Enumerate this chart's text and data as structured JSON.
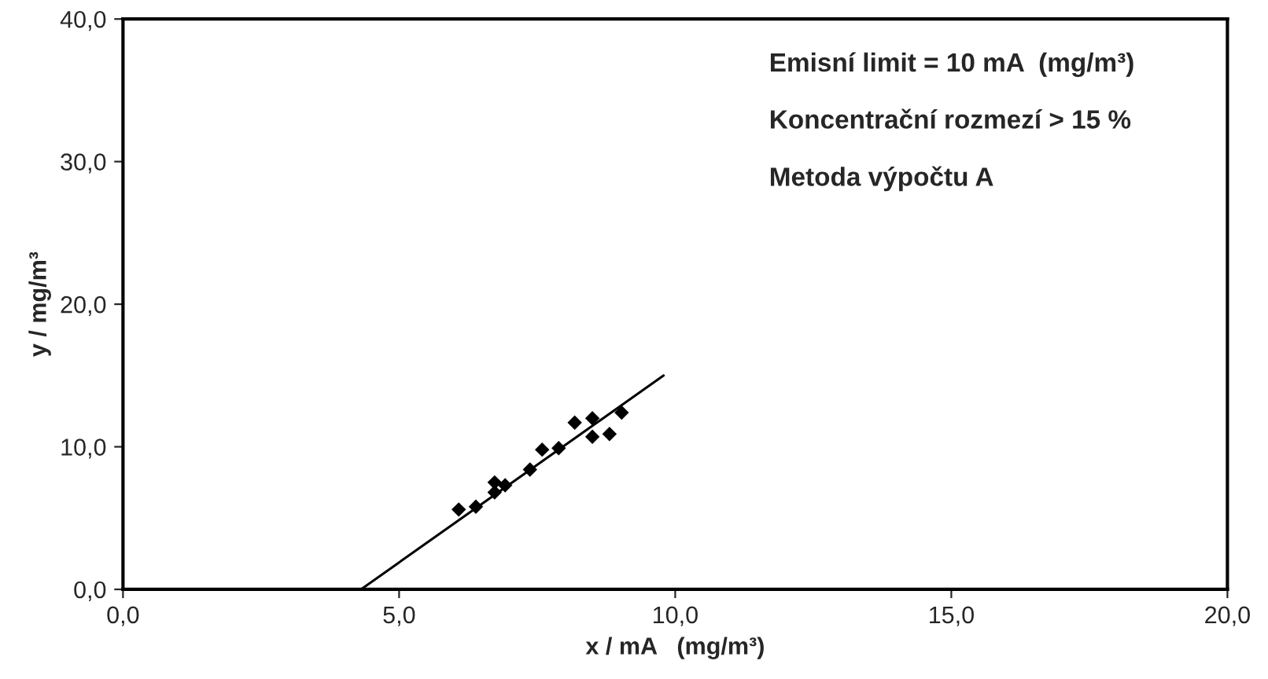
{
  "chart_data": {
    "type": "scatter",
    "xlabel": "x / mA   (mg/m³)",
    "ylabel": "y / mg/m³",
    "annotations": [
      "Emisní limit = 10 mA  (mg/m³)",
      "Koncentrační rozmezí > 15 %",
      "Metoda výpočtu A"
    ],
    "series": [
      {
        "color": "#000000",
        "marker": "diamond",
        "x": [
          6.08,
          6.39,
          6.73,
          6.73,
          6.92,
          7.37,
          7.59,
          7.89,
          8.18,
          8.5,
          8.5,
          8.81,
          9.03
        ],
        "values": [
          5.6,
          5.8,
          7.5,
          6.8,
          7.3,
          8.4,
          9.8,
          9.9,
          11.7,
          12.0,
          10.7,
          10.9,
          12.4
        ]
      },
      {
        "type": "line",
        "color": "#000000",
        "marker": "none",
        "x": [
          4.31,
          9.79
        ],
        "values": [
          0,
          15.0
        ]
      }
    ],
    "xlim": [
      0,
      20
    ],
    "ylim": [
      0,
      40
    ],
    "xticks": [
      {
        "value": 0,
        "label": "0,0"
      },
      {
        "value": 5,
        "label": "5,0"
      },
      {
        "value": 10,
        "label": "10,0"
      },
      {
        "value": 15,
        "label": "15,0"
      },
      {
        "value": 20,
        "label": "20,0"
      }
    ],
    "yticks": [
      {
        "value": 0,
        "label": "0,0"
      },
      {
        "value": 10,
        "label": "10,0"
      },
      {
        "value": 20,
        "label": "20,0"
      },
      {
        "value": 30,
        "label": "30,0"
      },
      {
        "value": 40,
        "label": "40,0"
      }
    ],
    "grid": false,
    "legend": false
  }
}
